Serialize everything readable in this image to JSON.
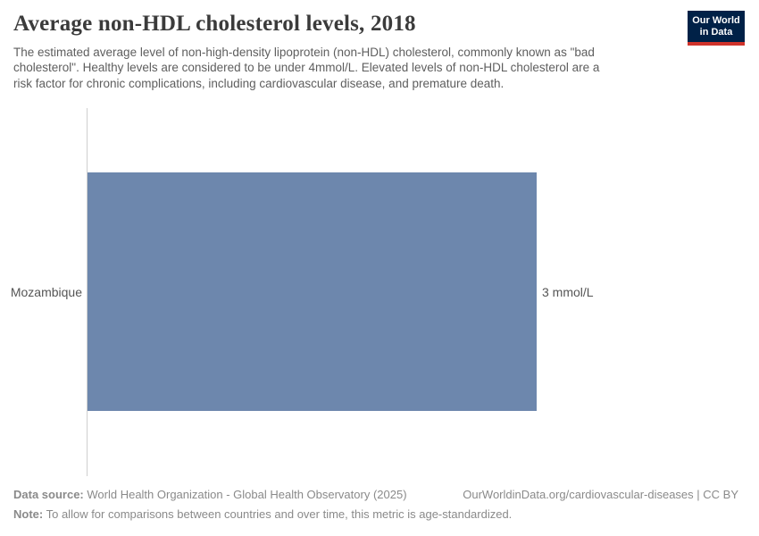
{
  "header": {
    "title": "Average non-HDL cholesterol levels, 2018",
    "subtitle_lines": [
      "The estimated average level of non-high-density lipoprotein (non-HDL) cholesterol, commonly known as \"bad",
      "cholesterol\". Healthy levels are considered to be under 4mmol/L. Elevated levels of non-HDL cholesterol are a",
      "risk factor for chronic complications, including cardiovascular disease, and premature death."
    ],
    "logo": {
      "line1": "Our World",
      "line2": "in Data",
      "bg": "#002147",
      "accent": "#d0332b"
    }
  },
  "chart_data": {
    "type": "bar",
    "orientation": "horizontal",
    "title": "Average non-HDL cholesterol levels, 2018",
    "categories": [
      "Mozambique"
    ],
    "values": [
      3
    ],
    "unit": "mmol/L",
    "value_labels": [
      "3 mmol/L"
    ],
    "xlim": [
      0,
      3
    ],
    "bar_color": "#6d87ad",
    "grid": false,
    "legend": false,
    "axis_line_color": "#cfcfcf",
    "label_color": "#555555"
  },
  "footer": {
    "data_source_label": "Data source:",
    "data_source": "World Health Organization - Global Health Observatory (2025)",
    "link": "OurWorldinData.org/cardiovascular-diseases | CC BY",
    "note_label": "Note:",
    "note": "To allow for comparisons between countries and over time, this metric is age-standardized."
  }
}
